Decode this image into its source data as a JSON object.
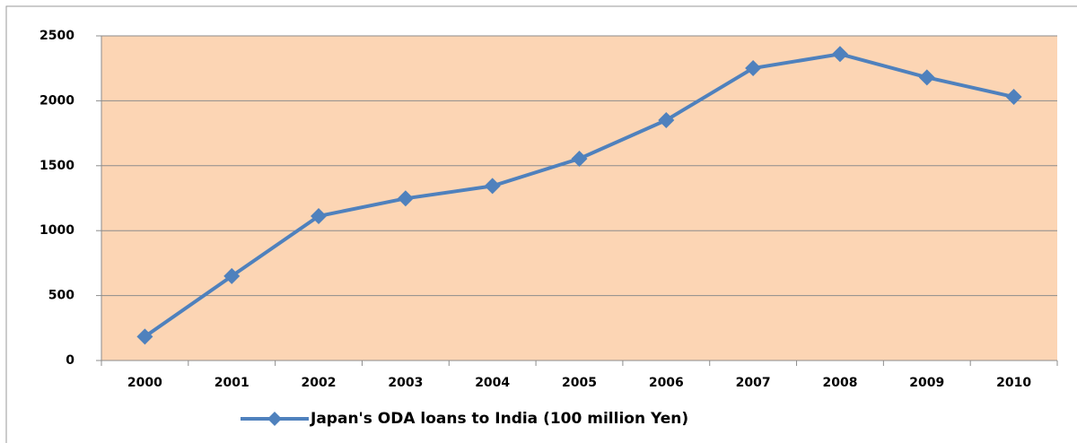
{
  "chart_data": {
    "type": "line",
    "categories": [
      "2000",
      "2001",
      "2002",
      "2003",
      "2004",
      "2005",
      "2006",
      "2007",
      "2008",
      "2009",
      "2010"
    ],
    "series": [
      {
        "name": "Japan's ODA loans to India (100 million Yen)",
        "color": "#4f81bd",
        "values": [
          184,
          650,
          1112,
          1248,
          1344,
          1554,
          1851,
          2251,
          2360,
          2180,
          2030
        ]
      }
    ],
    "ylim": [
      0,
      2500
    ],
    "yticks": [
      0,
      500,
      1000,
      1500,
      2000,
      2500
    ],
    "grid": true,
    "plot_background": "#fcd5b4",
    "legend": "bottom"
  }
}
